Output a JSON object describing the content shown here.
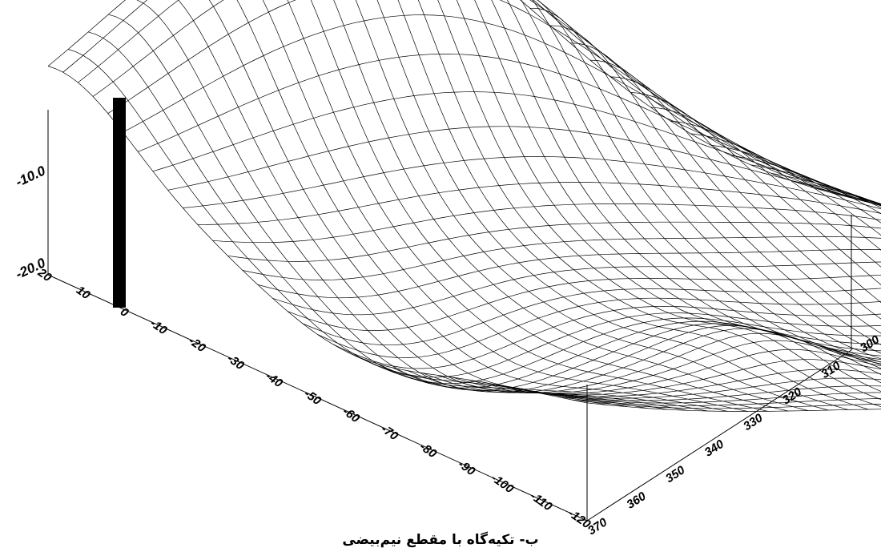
{
  "caption": "ب- تکیه‌گاه با مقطع نیم‌بیضی",
  "axes": {
    "z_ticks": [
      "-10.0",
      "-20.0"
    ],
    "y_ticks": [
      "20",
      "10",
      "0",
      "-10",
      "-20",
      "-30",
      "-40",
      "-50",
      "-60",
      "-70",
      "-80",
      "-90",
      "-100",
      "-110",
      "-120"
    ],
    "x_ticks": [
      "370",
      "360",
      "350",
      "340",
      "330",
      "320",
      "310",
      "300"
    ]
  },
  "chart_data": {
    "type": "surface",
    "title": "",
    "y_axis": {
      "ticks": [
        20,
        10,
        0,
        -10,
        -20,
        -30,
        -40,
        -50,
        -60,
        -70,
        -80,
        -90,
        -100,
        -110,
        -120
      ],
      "range": [
        -120,
        20
      ]
    },
    "x_axis": {
      "ticks": [
        370,
        360,
        350,
        340,
        330,
        320,
        310,
        300
      ],
      "range": [
        300,
        370
      ]
    },
    "z_axis": {
      "ticks": [
        -10.0,
        -20.0
      ]
    },
    "marker": {
      "type": "vertical bar",
      "y": 0,
      "color": "#000000"
    },
    "grid": true
  }
}
